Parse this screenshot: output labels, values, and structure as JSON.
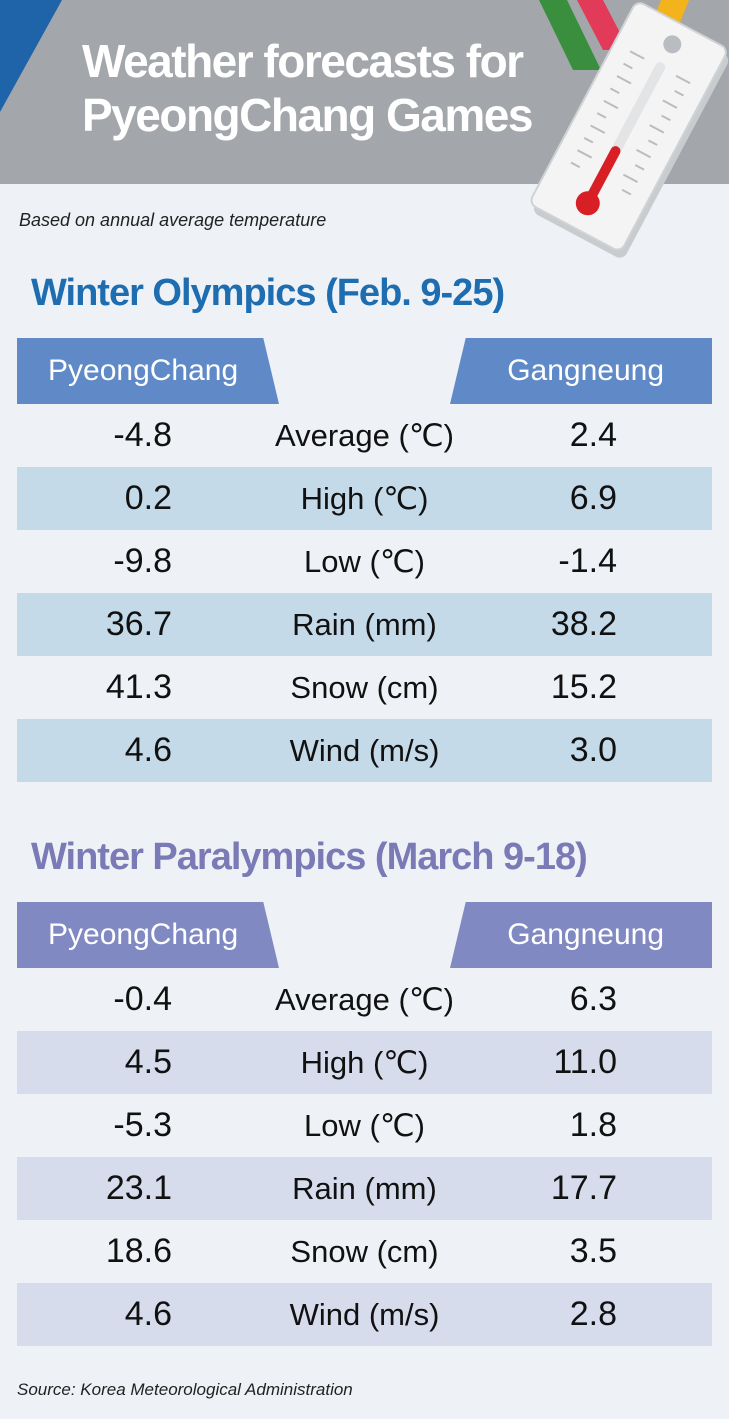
{
  "title_line1": "Weather forecasts for",
  "title_line2": "PyeongChang Games",
  "subtitle": "Based on annual average temperature",
  "source": "Source: Korea Meteorological Administration",
  "chart_data": [
    {
      "type": "table",
      "title": "Winter Olympics (Feb. 9-25)",
      "columns": [
        "PyeongChang",
        "Gangneung"
      ],
      "rows": [
        {
          "label": "Average (℃)",
          "pyeongchang": "-4.8",
          "gangneung": "2.4"
        },
        {
          "label": "High (℃)",
          "pyeongchang": "0.2",
          "gangneung": "6.9"
        },
        {
          "label": "Low (℃)",
          "pyeongchang": "-9.8",
          "gangneung": "-1.4"
        },
        {
          "label": "Rain (mm)",
          "pyeongchang": "36.7",
          "gangneung": "38.2"
        },
        {
          "label": "Snow (cm)",
          "pyeongchang": "41.3",
          "gangneung": "15.2"
        },
        {
          "label": "Wind (m/s)",
          "pyeongchang": "4.6",
          "gangneung": "3.0"
        }
      ]
    },
    {
      "type": "table",
      "title": "Winter Paralympics (March 9-18)",
      "columns": [
        "PyeongChang",
        "Gangneung"
      ],
      "rows": [
        {
          "label": "Average (℃)",
          "pyeongchang": "-0.4",
          "gangneung": "6.3"
        },
        {
          "label": "High (℃)",
          "pyeongchang": "4.5",
          "gangneung": "11.0"
        },
        {
          "label": "Low (℃)",
          "pyeongchang": "-5.3",
          "gangneung": "1.8"
        },
        {
          "label": "Rain (mm)",
          "pyeongchang": "23.1",
          "gangneung": "17.7"
        },
        {
          "label": "Snow (cm)",
          "pyeongchang": "18.6",
          "gangneung": "3.5"
        },
        {
          "label": "Wind (m/s)",
          "pyeongchang": "4.6",
          "gangneung": "2.8"
        }
      ]
    }
  ],
  "colors": {
    "header_bg": "#a3a7ab",
    "accent_blue": "#1e6db1",
    "accent_purple": "#7a7ab6",
    "olympics_header": "#5f8ac7",
    "paralympics_header": "#8089c2",
    "olympics_stripe": "#c4dae8",
    "paralympics_stripe": "#d6dcec"
  },
  "icons": [
    "thermometer-icon"
  ]
}
